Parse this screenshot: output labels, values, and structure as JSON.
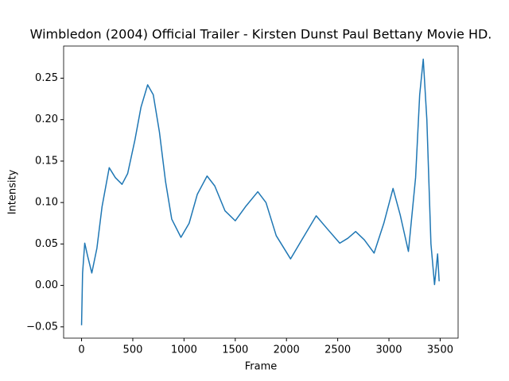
{
  "chart_data": {
    "type": "line",
    "title": "Wimbledon (2004) Official Trailer - Kirsten Dunst Paul Bettany Movie HD.",
    "xlabel": "Frame",
    "ylabel": "Intensity",
    "x": [
      0,
      10,
      31,
      60,
      100,
      150,
      200,
      270,
      330,
      395,
      450,
      520,
      580,
      645,
      700,
      760,
      820,
      880,
      970,
      1050,
      1130,
      1225,
      1300,
      1400,
      1500,
      1600,
      1720,
      1800,
      1900,
      2040,
      2150,
      2290,
      2400,
      2520,
      2600,
      2675,
      2760,
      2855,
      2950,
      3040,
      3110,
      3190,
      3260,
      3300,
      3335,
      3370,
      3410,
      3445,
      3475,
      3490
    ],
    "series": [
      {
        "color": "#1f77b4",
        "values": [
          -0.048,
          0.015,
          0.051,
          0.035,
          0.015,
          0.045,
          0.095,
          0.142,
          0.13,
          0.122,
          0.135,
          0.175,
          0.215,
          0.242,
          0.23,
          0.185,
          0.125,
          0.08,
          0.058,
          0.075,
          0.11,
          0.132,
          0.12,
          0.09,
          0.078,
          0.095,
          0.113,
          0.1,
          0.06,
          0.032,
          0.055,
          0.084,
          0.068,
          0.051,
          0.057,
          0.065,
          0.055,
          0.039,
          0.075,
          0.117,
          0.085,
          0.041,
          0.13,
          0.23,
          0.273,
          0.2,
          0.05,
          0.001,
          0.038,
          0.005
        ]
      }
    ],
    "xlim": [
      -175,
      3675
    ],
    "ylim": [
      -0.0636,
      0.2888
    ],
    "xticks": [
      0,
      500,
      1000,
      1500,
      2000,
      2500,
      3000,
      3500
    ],
    "yticks": [
      {
        "value": -0.05,
        "label": "−0.05"
      },
      {
        "value": 0,
        "label": "0.00"
      },
      {
        "value": 0.05,
        "label": "0.05"
      },
      {
        "value": 0.1,
        "label": "0.10"
      },
      {
        "value": 0.15,
        "label": "0.15"
      },
      {
        "value": 0.2,
        "label": "0.20"
      },
      {
        "value": 0.25,
        "label": "0.25"
      }
    ]
  }
}
